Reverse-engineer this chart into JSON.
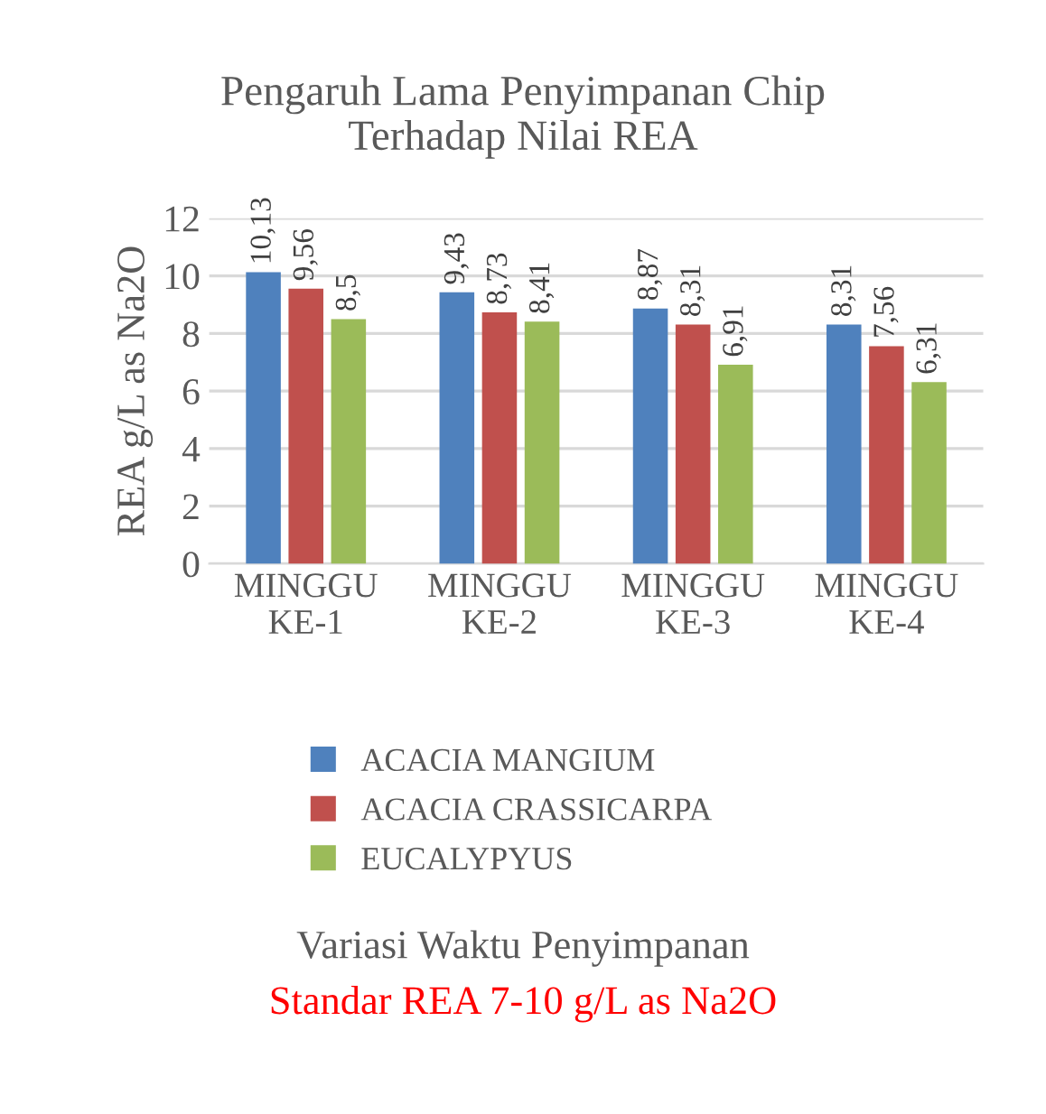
{
  "chart_data": {
    "type": "bar",
    "title": "Pengaruh Lama Penyimpanan Chip\nTerhadap Nilai REA",
    "ylabel": "REA g/L as Na2O",
    "annotations": [
      "Variasi Waktu Penyimpanan",
      "Standar REA 7-10 g/L as Na2O"
    ],
    "categories": [
      "MINGGU\nKE-1",
      "MINGGU\nKE-2",
      "MINGGU\nKE-3",
      "MINGGU\nKE-4"
    ],
    "series": [
      {
        "name": "ACACIA MANGIUM",
        "color": "#4f81bd",
        "values": [
          10.13,
          9.43,
          8.87,
          8.31
        ],
        "value_labels": [
          "10,13",
          "9,43",
          "8,87",
          "8,31"
        ]
      },
      {
        "name": "ACACIA CRASSICARPA",
        "color": "#c0504d",
        "values": [
          9.56,
          8.73,
          8.31,
          7.56
        ],
        "value_labels": [
          "9,56",
          "8,73",
          "8,31",
          "7,56"
        ]
      },
      {
        "name": "EUCALYPYUS",
        "color": "#9bbb59",
        "values": [
          8.5,
          8.41,
          6.91,
          6.31
        ],
        "value_labels": [
          "8,5",
          "8,41",
          "6,91",
          "6,31"
        ]
      }
    ],
    "ylim": [
      0,
      12
    ],
    "yticks": [
      0,
      2,
      4,
      6,
      8,
      10,
      12
    ],
    "grid": "y",
    "legend": "bottom"
  }
}
